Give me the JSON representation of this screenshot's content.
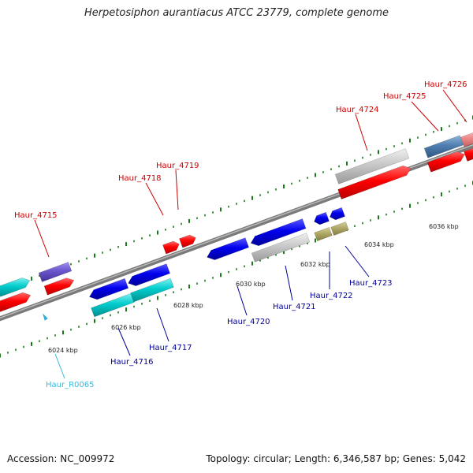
{
  "title": "Herpetosiphon aurantiacus ATCC 23779, complete genome",
  "accession": "Accession: NC_009972",
  "summary": "Topology: circular; Length: 6,346,587 bp; Genes: 5,042",
  "colors": {
    "backbone": "#8a8a8a",
    "tick": "#1a7a1a",
    "label_top": "#cc0000",
    "label_bottom": "#000099",
    "label_rna": "#33bbdd"
  },
  "kbp_labels": [
    {
      "text": "6024 kbp"
    },
    {
      "text": "6026 kbp"
    },
    {
      "text": "6028 kbp"
    },
    {
      "text": "6030 kbp"
    },
    {
      "text": "6032 kbp"
    },
    {
      "text": "6034 kbp"
    },
    {
      "text": "6036 kbp"
    }
  ],
  "gene_labels": [
    {
      "text": "Haur_4715",
      "group": "top"
    },
    {
      "text": "Haur_4718",
      "group": "top"
    },
    {
      "text": "Haur_4719",
      "group": "top"
    },
    {
      "text": "Haur_4724",
      "group": "top"
    },
    {
      "text": "Haur_4725",
      "group": "top"
    },
    {
      "text": "Haur_4726",
      "group": "top"
    },
    {
      "text": "Haur_4716",
      "group": "bottom"
    },
    {
      "text": "Haur_4717",
      "group": "bottom"
    },
    {
      "text": "Haur_4720",
      "group": "bottom"
    },
    {
      "text": "Haur_4721",
      "group": "bottom"
    },
    {
      "text": "Haur_4722",
      "group": "bottom"
    },
    {
      "text": "Haur_4723",
      "group": "bottom"
    },
    {
      "text": "Haur_R0065",
      "group": "rna"
    }
  ]
}
